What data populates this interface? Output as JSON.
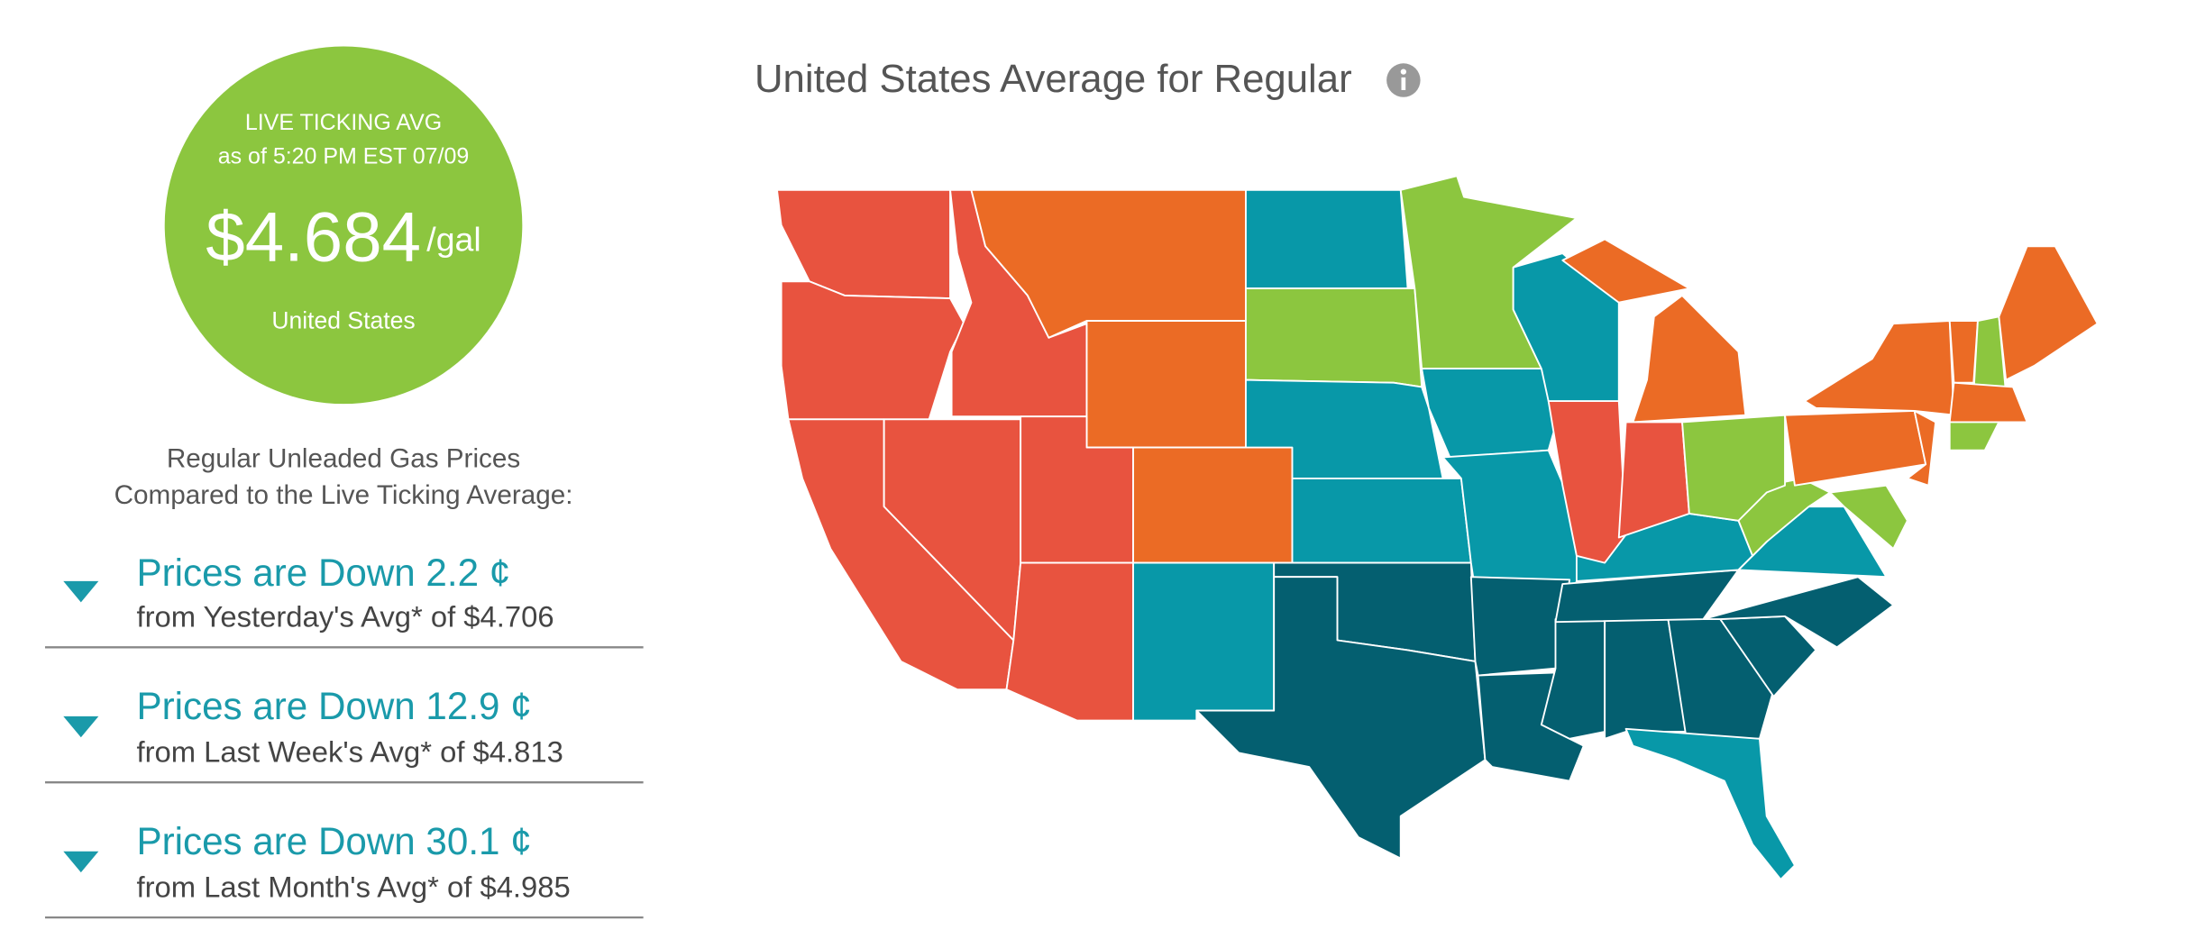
{
  "circle": {
    "heading": "LIVE TICKING AVG",
    "timestamp": "as of 5:20 PM EST 07/09",
    "price": "$4.684",
    "unit": "/gal",
    "region": "United States"
  },
  "comparison": {
    "heading_lines": [
      "Regular Unleaded Gas Prices",
      "Compared to the Live Ticking Average:"
    ],
    "items": [
      {
        "headline": "Prices are Down 2.2 ¢",
        "detail": "from Yesterday's Avg* of $4.706"
      },
      {
        "headline": "Prices are Down 12.9 ¢",
        "detail": "from Last Week's Avg* of $4.813"
      },
      {
        "headline": "Prices are Down 30.1 ¢",
        "detail": "from Last Month's Avg* of $4.985"
      }
    ]
  },
  "map": {
    "title": "United States Average for Regular"
  }
}
